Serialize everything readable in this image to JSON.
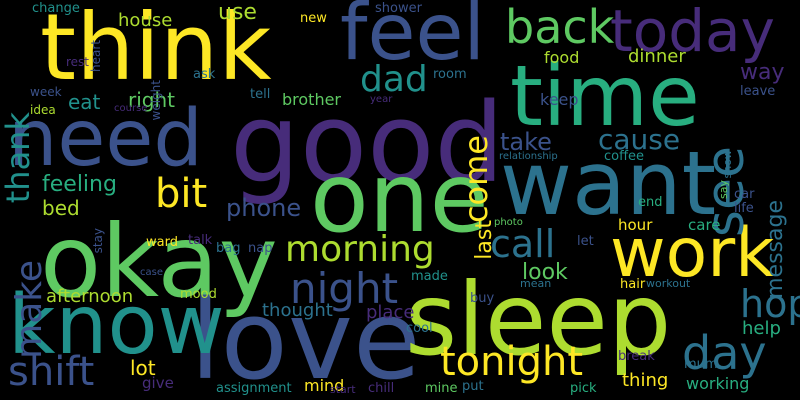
{
  "background": "#000000",
  "palette": {
    "dark_purple": "#44154f",
    "purple": "#472c7a",
    "indigo": "#3b528b",
    "steel_blue": "#2c728e",
    "teal": "#21918c",
    "sea_green": "#28ae80",
    "green": "#5ec962",
    "lime": "#addc30",
    "yellow": "#fde725"
  },
  "words": [
    {
      "text": "think",
      "color": "#fde725"
    },
    {
      "text": "feel",
      "color": "#3b528b"
    },
    {
      "text": "today",
      "color": "#472c7a"
    },
    {
      "text": "back",
      "color": "#5ec962"
    },
    {
      "text": "time",
      "color": "#28ae80"
    },
    {
      "text": "need",
      "color": "#3b528b"
    },
    {
      "text": "good",
      "color": "#472c7a"
    },
    {
      "text": "want",
      "color": "#2c728e"
    },
    {
      "text": "one",
      "color": "#5ec962"
    },
    {
      "text": "okay",
      "color": "#5ec962"
    },
    {
      "text": "love",
      "color": "#3b528b"
    },
    {
      "text": "sleep",
      "color": "#addc30"
    },
    {
      "text": "know",
      "color": "#21918c"
    },
    {
      "text": "work",
      "color": "#fde725"
    },
    {
      "text": "morning",
      "color": "#addc30"
    },
    {
      "text": "night",
      "color": "#3b528b"
    },
    {
      "text": "call",
      "color": "#2c728e"
    },
    {
      "text": "tonight",
      "color": "#fde725"
    },
    {
      "text": "day",
      "color": "#2c728e"
    },
    {
      "text": "hope",
      "color": "#2c728e"
    },
    {
      "text": "see",
      "color": "#2c728e"
    },
    {
      "text": "come",
      "color": "#fde725"
    },
    {
      "text": "dad",
      "color": "#21918c"
    },
    {
      "text": "bit",
      "color": "#fde725"
    },
    {
      "text": "make",
      "color": "#3b528b"
    },
    {
      "text": "shift",
      "color": "#3b528b"
    },
    {
      "text": "thank",
      "color": "#21918c"
    },
    {
      "text": "eat",
      "color": "#21918c"
    },
    {
      "text": "right",
      "color": "#5ec962"
    },
    {
      "text": "house",
      "color": "#addc30"
    },
    {
      "text": "use",
      "color": "#addc30"
    },
    {
      "text": "cause",
      "color": "#2c728e"
    },
    {
      "text": "take",
      "color": "#3b528b"
    },
    {
      "text": "keep",
      "color": "#3b528b"
    },
    {
      "text": "way",
      "color": "#472c7a"
    },
    {
      "text": "dinner",
      "color": "#addc30"
    },
    {
      "text": "food",
      "color": "#addc30"
    },
    {
      "text": "message",
      "color": "#2c728e"
    },
    {
      "text": "feeling",
      "color": "#28ae80"
    },
    {
      "text": "bed",
      "color": "#addc30"
    },
    {
      "text": "phone",
      "color": "#3b528b"
    },
    {
      "text": "last",
      "color": "#fde725"
    },
    {
      "text": "look",
      "color": "#5ec962"
    },
    {
      "text": "afternoon",
      "color": "#addc30"
    },
    {
      "text": "brother",
      "color": "#5ec962"
    },
    {
      "text": "thought",
      "color": "#2c728e"
    },
    {
      "text": "place",
      "color": "#472c7a"
    },
    {
      "text": "lot",
      "color": "#fde725"
    },
    {
      "text": "thing",
      "color": "#fde725"
    },
    {
      "text": "working",
      "color": "#28ae80"
    },
    {
      "text": "help",
      "color": "#28ae80"
    },
    {
      "text": "mind",
      "color": "#fde725"
    },
    {
      "text": "assignment",
      "color": "#21918c"
    },
    {
      "text": "start",
      "color": "#472c7a"
    },
    {
      "text": "chill",
      "color": "#472c7a"
    },
    {
      "text": "mine",
      "color": "#5ec962"
    },
    {
      "text": "put",
      "color": "#2c728e"
    },
    {
      "text": "pick",
      "color": "#28ae80"
    },
    {
      "text": "give",
      "color": "#472c7a"
    },
    {
      "text": "mood",
      "color": "#addc30"
    },
    {
      "text": "ward",
      "color": "#fde725"
    },
    {
      "text": "talk",
      "color": "#472c7a"
    },
    {
      "text": "bag",
      "color": "#2c728e"
    },
    {
      "text": "nap",
      "color": "#3b528b"
    },
    {
      "text": "made",
      "color": "#21918c"
    },
    {
      "text": "let",
      "color": "#3b528b"
    },
    {
      "text": "buy",
      "color": "#3b528b"
    },
    {
      "text": "mean",
      "color": "#2c728e"
    },
    {
      "text": "hair",
      "color": "#fde725"
    },
    {
      "text": "workout",
      "color": "#2c728e"
    },
    {
      "text": "cool",
      "color": "#2c728e"
    },
    {
      "text": "hour",
      "color": "#fde725"
    },
    {
      "text": "care",
      "color": "#28ae80"
    },
    {
      "text": "life",
      "color": "#3b528b"
    },
    {
      "text": "end",
      "color": "#28ae80"
    },
    {
      "text": "car",
      "color": "#3b528b"
    },
    {
      "text": "say",
      "color": "#5ec962"
    },
    {
      "text": "show",
      "color": "#2c728e"
    },
    {
      "text": "leave",
      "color": "#3b528b"
    },
    {
      "text": "coffee",
      "color": "#21918c"
    },
    {
      "text": "relationship",
      "color": "#2c728e"
    },
    {
      "text": "photo",
      "color": "#5ec962"
    },
    {
      "text": "break",
      "color": "#472c7a"
    },
    {
      "text": "mum",
      "color": "#2c728e"
    },
    {
      "text": "room",
      "color": "#2c728e"
    },
    {
      "text": "tell",
      "color": "#2c728e"
    },
    {
      "text": "year",
      "color": "#472c7a"
    },
    {
      "text": "new",
      "color": "#fde725"
    },
    {
      "text": "shower",
      "color": "#3b528b"
    },
    {
      "text": "ask",
      "color": "#2c728e"
    },
    {
      "text": "change",
      "color": "#21918c"
    },
    {
      "text": "heart",
      "color": "#3b528b"
    },
    {
      "text": "weight",
      "color": "#3b528b"
    },
    {
      "text": "rest",
      "color": "#472c7a"
    },
    {
      "text": "week",
      "color": "#3b528b"
    },
    {
      "text": "idea",
      "color": "#addc30"
    },
    {
      "text": "course",
      "color": "#472c7a"
    },
    {
      "text": "stay",
      "color": "#3b528b"
    },
    {
      "text": "case",
      "color": "#3b528b"
    }
  ]
}
